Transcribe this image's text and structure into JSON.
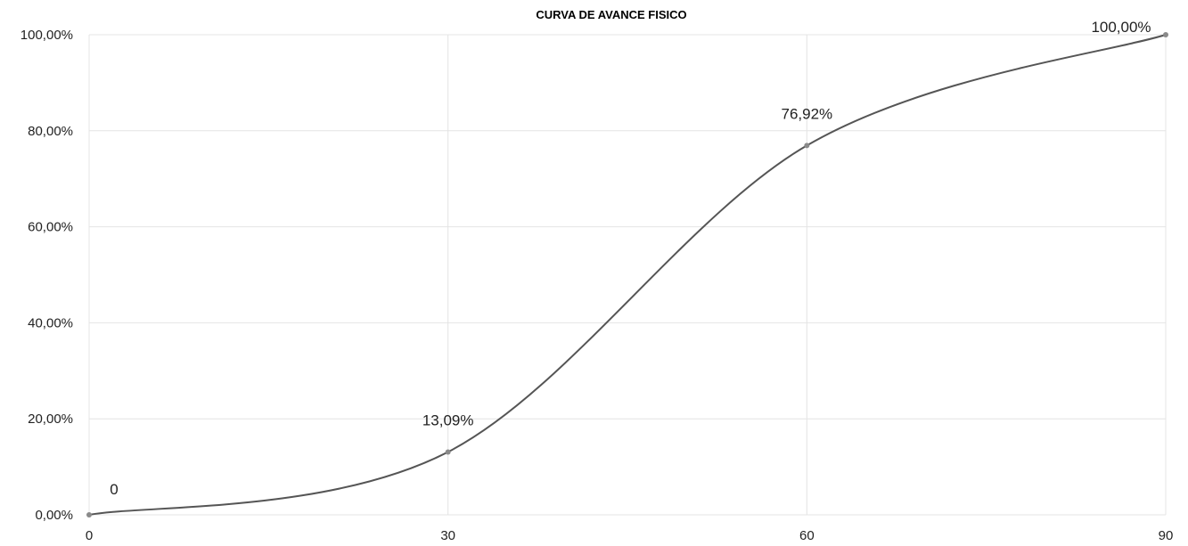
{
  "chart_data": {
    "type": "line",
    "title": "CURVA DE AVANCE FISICO",
    "x": [
      0,
      30,
      60,
      90
    ],
    "x_tick_labels": [
      "0",
      "30",
      "60",
      "90"
    ],
    "y_tick_labels": [
      "0,00%",
      "20,00%",
      "40,00%",
      "60,00%",
      "80,00%",
      "100,00%"
    ],
    "y_ticks": [
      0,
      20,
      40,
      60,
      80,
      100
    ],
    "series": [
      {
        "values": [
          0,
          13.09,
          76.92,
          100
        ],
        "data_labels": [
          "0",
          "13,09%",
          "76,92%",
          "100,00%"
        ],
        "color": "#555555",
        "smooth": true
      }
    ],
    "xlim": [
      0,
      90
    ],
    "ylim": [
      0,
      100
    ],
    "grid": true,
    "legend": "none"
  }
}
